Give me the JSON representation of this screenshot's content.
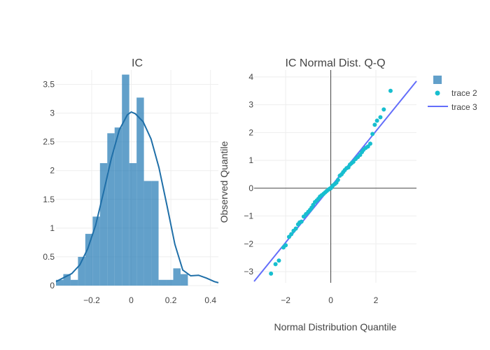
{
  "colors": {
    "hist": "#1f77b4",
    "kde": "#1f6fa8",
    "scatter": "#17becf",
    "line": "#636efa",
    "zeroline": "#444444"
  },
  "chart_data": [
    {
      "type": "bar",
      "title": "IC",
      "xlabel": "",
      "ylabel": "",
      "xlim": [
        -0.38,
        0.44
      ],
      "ylim": [
        0,
        3.75
      ],
      "x_ticks": [
        -0.2,
        0,
        0.2,
        0.4
      ],
      "x_tick_labels": [
        "−0.2",
        "0",
        "0.2",
        "0.4"
      ],
      "y_ticks": [
        0,
        0.5,
        1,
        1.5,
        2,
        2.5,
        3,
        3.5
      ],
      "y_tick_labels": [
        "0",
        "0.5",
        "1",
        "1.5",
        "2",
        "2.5",
        "3",
        "3.5"
      ],
      "bin_edges": [
        -0.38,
        -0.343,
        -0.306,
        -0.269,
        -0.232,
        -0.195,
        -0.158,
        -0.121,
        -0.084,
        -0.047,
        -0.01,
        0.027,
        0.064,
        0.101,
        0.138,
        0.175,
        0.212,
        0.249,
        0.286,
        0.323,
        0.36
      ],
      "values": [
        0.1,
        0.2,
        0.1,
        0.5,
        0.9,
        1.2,
        2.13,
        2.65,
        2.75,
        3.67,
        2.13,
        3.27,
        1.82,
        1.82,
        0.1,
        0.1,
        0.3,
        0.2,
        0,
        0
      ],
      "kde": {
        "x": [
          -0.38,
          -0.34,
          -0.3,
          -0.26,
          -0.22,
          -0.18,
          -0.14,
          -0.1,
          -0.06,
          -0.02,
          0.0,
          0.02,
          0.06,
          0.1,
          0.14,
          0.18,
          0.22,
          0.26,
          0.3,
          0.34,
          0.38,
          0.42,
          0.44
        ],
        "y": [
          0.07,
          0.14,
          0.21,
          0.36,
          0.64,
          1.05,
          1.62,
          2.22,
          2.71,
          2.97,
          3.02,
          2.99,
          2.85,
          2.55,
          2.05,
          1.4,
          0.72,
          0.27,
          0.17,
          0.18,
          0.13,
          0.07,
          0.05
        ]
      }
    },
    {
      "type": "scatter",
      "title": "IC Normal Dist. Q-Q",
      "xlabel": "Normal Distribution Quantile",
      "ylabel": "Observed Quantile",
      "xlim": [
        -3.4,
        3.8
      ],
      "ylim": [
        -3.4,
        4.25
      ],
      "x_ticks": [
        -2,
        0,
        2
      ],
      "x_tick_labels": [
        "−2",
        "0",
        "2"
      ],
      "y_ticks": [
        -3,
        -2,
        -1,
        0,
        1,
        2,
        3,
        4
      ],
      "y_tick_labels": [
        "−3",
        "−2",
        "−1",
        "0",
        "1",
        "2",
        "3",
        "4"
      ],
      "series": [
        {
          "name": "trace 2",
          "x": [
            -2.65,
            -2.45,
            -2.3,
            -2.1,
            -2.0,
            -1.85,
            -1.75,
            -1.65,
            -1.55,
            -1.45,
            -1.38,
            -1.3,
            -1.2,
            -1.1,
            -1.0,
            -0.92,
            -0.85,
            -0.78,
            -0.7,
            -0.62,
            -0.55,
            -0.48,
            -0.4,
            -0.32,
            -0.25,
            -0.18,
            -0.1,
            -0.05,
            0.0,
            0.05,
            0.1,
            0.18,
            0.25,
            0.32,
            0.4,
            0.48,
            0.55,
            0.62,
            0.7,
            0.78,
            0.85,
            0.92,
            1.0,
            1.1,
            1.2,
            1.3,
            1.38,
            1.45,
            1.55,
            1.65,
            1.75,
            1.85,
            1.95,
            2.05,
            2.2,
            2.35,
            2.65
          ],
          "y": [
            -3.07,
            -2.73,
            -2.6,
            -2.13,
            -2.05,
            -1.75,
            -1.65,
            -1.53,
            -1.45,
            -1.3,
            -1.23,
            -1.2,
            -1.02,
            -0.93,
            -0.85,
            -0.78,
            -0.7,
            -0.6,
            -0.5,
            -0.44,
            -0.38,
            -0.3,
            -0.25,
            -0.2,
            -0.15,
            -0.1,
            -0.05,
            -0.02,
            0.0,
            0.05,
            0.1,
            0.15,
            0.2,
            0.3,
            0.45,
            0.5,
            0.58,
            0.65,
            0.72,
            0.75,
            0.85,
            0.9,
            0.95,
            1.05,
            1.12,
            1.2,
            1.3,
            1.38,
            1.45,
            1.5,
            1.6,
            1.95,
            2.28,
            2.43,
            2.55,
            2.83,
            3.5
          ]
        },
        {
          "name": "trace 3",
          "type": "line",
          "x": [
            -3.4,
            3.8
          ],
          "y": [
            -3.35,
            3.85
          ]
        }
      ],
      "legend": {
        "placement": "top-right",
        "entries": [
          {
            "name": "",
            "symbol": "square"
          },
          {
            "name": "trace 2",
            "symbol": "dot"
          },
          {
            "name": "trace 3",
            "symbol": "line"
          }
        ]
      }
    }
  ]
}
